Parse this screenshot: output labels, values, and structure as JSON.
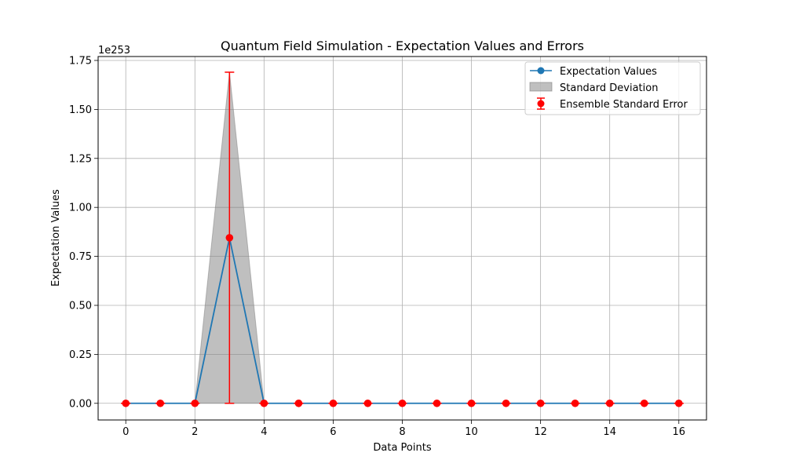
{
  "chart_data": {
    "type": "line",
    "title": "Quantum Field Simulation - Expectation Values and Errors",
    "xlabel": "Data Points",
    "ylabel": "Expectation Values",
    "y_offset_label": "1e253",
    "xlim": [
      -0.8,
      16.8
    ],
    "ylim": [
      -0.085,
      1.77
    ],
    "x_ticks": [
      0,
      2,
      4,
      6,
      8,
      10,
      12,
      14,
      16
    ],
    "x_tick_labels": [
      "0",
      "2",
      "4",
      "6",
      "8",
      "10",
      "12",
      "14",
      "16"
    ],
    "y_ticks": [
      0,
      0.25,
      0.5,
      0.75,
      1.0,
      1.25,
      1.5,
      1.75
    ],
    "y_tick_labels": [
      "0.00",
      "0.25",
      "0.50",
      "0.75",
      "1.00",
      "1.25",
      "1.50",
      "1.75"
    ],
    "grid": true,
    "legend_position": "upper-right",
    "x": [
      0,
      1,
      2,
      3,
      4,
      5,
      6,
      7,
      8,
      9,
      10,
      11,
      12,
      13,
      14,
      15,
      16
    ],
    "series": [
      {
        "name": "Expectation Values",
        "kind": "line-marker",
        "color": "#1f77b4",
        "values": [
          0,
          0,
          0,
          0.845,
          0,
          0,
          0,
          0,
          0,
          0,
          0,
          0,
          0,
          0,
          0,
          0,
          0
        ]
      },
      {
        "name": "Standard Deviation",
        "kind": "fill",
        "color": "#808080",
        "upper": [
          0,
          0,
          0,
          1.69,
          0,
          0,
          0,
          0,
          0,
          0,
          0,
          0,
          0,
          0,
          0,
          0,
          0
        ],
        "lower": [
          0,
          0,
          0,
          0,
          0,
          0,
          0,
          0,
          0,
          0,
          0,
          0,
          0,
          0,
          0,
          0,
          0
        ]
      },
      {
        "name": "Ensemble Standard Error",
        "kind": "errorbar",
        "color": "#ff0000",
        "values": [
          0,
          0,
          0,
          0.845,
          0,
          0,
          0,
          0,
          0,
          0,
          0,
          0,
          0,
          0,
          0,
          0,
          0
        ],
        "errors": [
          0,
          0,
          0,
          0.845,
          0,
          0,
          0,
          0,
          0,
          0,
          0,
          0,
          0,
          0,
          0,
          0,
          0
        ]
      }
    ]
  }
}
